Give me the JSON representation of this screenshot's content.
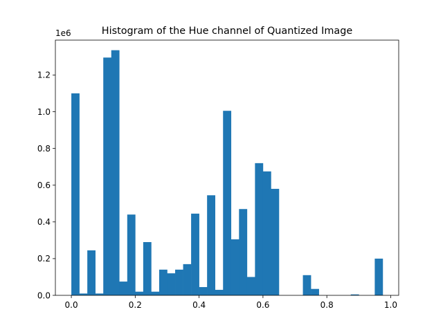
{
  "chart_data": {
    "type": "bar",
    "title": "Histogram of the Hue channel of Quantized Image",
    "xlabel": "",
    "ylabel": "",
    "y_offset_label": "1e6",
    "xlim": [
      -0.05,
      1.025
    ],
    "ylim": [
      0,
      1.39
    ],
    "x_ticks": [
      0.0,
      0.2,
      0.4,
      0.6,
      0.8,
      1.0
    ],
    "x_tick_labels": [
      "0.0",
      "0.2",
      "0.4",
      "0.6",
      "0.8",
      "1.0"
    ],
    "y_ticks": [
      0.0,
      0.2,
      0.4,
      0.6,
      0.8,
      1.0,
      1.2
    ],
    "y_tick_labels": [
      "0.0",
      "0.2",
      "0.4",
      "0.6",
      "0.8",
      "1.0",
      "1.2"
    ],
    "bin_start": 0.0,
    "bin_width": 0.025,
    "values": [
      1.1,
      0.01,
      0.245,
      0.01,
      1.295,
      1.335,
      0.075,
      0.44,
      0.02,
      0.29,
      0.02,
      0.14,
      0.12,
      0.14,
      0.17,
      0.445,
      0.045,
      0.545,
      0.03,
      1.005,
      0.305,
      0.47,
      0.1,
      0.72,
      0.675,
      0.58,
      0.0,
      0.0,
      0.0,
      0.11,
      0.035,
      0.0,
      0.0,
      0.0,
      0.0,
      0.005,
      0.0,
      0.0,
      0.2
    ],
    "colors": {
      "bar": "#1f77b4",
      "axis": "#000000",
      "background": "#ffffff"
    },
    "grid": false
  }
}
